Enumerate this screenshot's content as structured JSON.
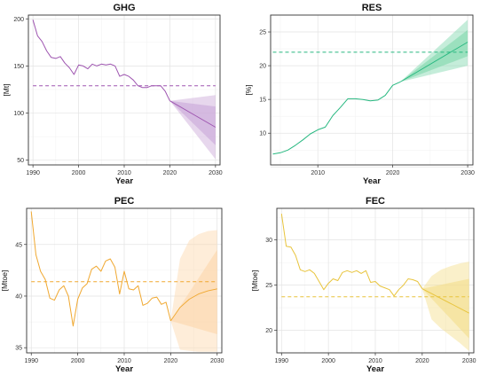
{
  "chart_data": [
    {
      "type": "line",
      "title": "GHG",
      "xlabel": "Year",
      "ylabel": "[Mt]",
      "color": "#9e55b0",
      "band_color": "#c9a6d8",
      "xlim": [
        1989,
        2031
      ],
      "ylim": [
        45,
        204
      ],
      "xticks": [
        1990,
        2000,
        2010,
        2020,
        2030
      ],
      "yticks": [
        50,
        100,
        150,
        200
      ],
      "grid": true,
      "series": [
        {
          "role": "historical",
          "x": [
            1990,
            1991,
            1992,
            1993,
            1994,
            1995,
            1996,
            1997,
            1998,
            1999,
            2000,
            2001,
            2002,
            2003,
            2004,
            2005,
            2006,
            2007,
            2008,
            2009,
            2010,
            2011,
            2012,
            2013,
            2014,
            2015,
            2016,
            2017,
            2018,
            2019,
            2020
          ],
          "values": [
            199,
            182,
            176,
            166,
            159,
            158,
            160,
            153,
            148,
            141,
            151,
            150,
            147,
            152,
            150,
            152,
            151,
            152,
            150,
            139,
            141,
            139,
            135,
            129,
            127,
            127,
            129,
            129,
            129,
            123,
            113
          ]
        },
        {
          "role": "forecast",
          "x": [
            2020,
            2030
          ],
          "values": [
            113,
            85
          ]
        },
        {
          "role": "target",
          "x": [
            1990,
            2030
          ],
          "values": [
            129,
            129
          ]
        }
      ],
      "bands": [
        {
          "x": [
            2020,
            2030
          ],
          "lower": [
            113,
            66
          ],
          "upper": [
            113,
            107
          ]
        },
        {
          "x": [
            2020,
            2030
          ],
          "lower": [
            113,
            51
          ],
          "upper": [
            113,
            119
          ]
        }
      ]
    },
    {
      "type": "line",
      "title": "RES",
      "xlabel": "Year",
      "ylabel": "[%]",
      "color": "#27b880",
      "band_color": "#7fd7ac",
      "xlim": [
        2003.7,
        2030.7
      ],
      "ylim": [
        5.3,
        27.5
      ],
      "xticks": [
        2010,
        2020,
        2030
      ],
      "yticks": [
        5,
        10,
        15,
        20,
        25
      ],
      "grid": true,
      "series": [
        {
          "role": "historical",
          "x": [
            2004,
            2005,
            2006,
            2007,
            2008,
            2009,
            2010,
            2011,
            2012,
            2013,
            2014,
            2015,
            2016,
            2017,
            2018,
            2019,
            2020,
            2021
          ],
          "values": [
            6.9,
            7.1,
            7.5,
            8.2,
            9.0,
            9.9,
            10.5,
            10.9,
            12.6,
            13.8,
            15.1,
            15.1,
            15.0,
            14.8,
            14.9,
            15.6,
            17.1,
            17.6
          ]
        },
        {
          "role": "forecast",
          "x": [
            2021,
            2030
          ],
          "values": [
            17.6,
            23.5
          ]
        },
        {
          "role": "target",
          "x": [
            2004,
            2030
          ],
          "values": [
            22.0,
            22.0
          ]
        }
      ],
      "bands": [
        {
          "x": [
            2021,
            2030
          ],
          "lower": [
            17.6,
            21.4
          ],
          "upper": [
            17.6,
            25.3
          ]
        },
        {
          "x": [
            2021,
            2030
          ],
          "lower": [
            17.6,
            20.0
          ],
          "upper": [
            17.6,
            26.8
          ]
        }
      ]
    },
    {
      "type": "line",
      "title": "PEC",
      "xlabel": "Year",
      "ylabel": "[Mtoe]",
      "color": "#f0a830",
      "band_color": "#fcd6aa",
      "xlim": [
        1989,
        2031
      ],
      "ylim": [
        34.5,
        48.5
      ],
      "xticks": [
        1990,
        2000,
        2010,
        2020,
        2030
      ],
      "yticks": [
        35,
        40,
        45
      ],
      "grid": true,
      "series": [
        {
          "role": "historical",
          "x": [
            1990,
            1991,
            1992,
            1993,
            1994,
            1995,
            1996,
            1997,
            1998,
            1999,
            2000,
            2001,
            2002,
            2003,
            2004,
            2005,
            2006,
            2007,
            2008,
            2009,
            2010,
            2011,
            2012,
            2013,
            2014,
            2015,
            2016,
            2017,
            2018,
            2019,
            2020
          ],
          "values": [
            48.2,
            44.0,
            42.4,
            41.6,
            39.8,
            39.6,
            40.6,
            41.0,
            40.0,
            37.1,
            39.7,
            40.8,
            41.2,
            42.6,
            42.9,
            42.4,
            43.4,
            43.6,
            42.8,
            40.2,
            42.4,
            40.7,
            40.6,
            41.0,
            39.1,
            39.3,
            39.8,
            39.9,
            39.2,
            39.4,
            37.6
          ]
        },
        {
          "role": "forecast",
          "x": [
            2020,
            2022,
            2024,
            2026,
            2028,
            2030
          ],
          "values": [
            37.6,
            38.9,
            39.7,
            40.2,
            40.5,
            40.7
          ]
        },
        {
          "role": "target",
          "x": [
            1990,
            2030
          ],
          "values": [
            41.4,
            41.4
          ]
        }
      ],
      "bands": [
        {
          "x": [
            2020,
            2030
          ],
          "lower": [
            37.6,
            36.3
          ],
          "upper": [
            37.6,
            44.5
          ]
        },
        {
          "x": [
            2020,
            2022,
            2024,
            2026,
            2028,
            2030
          ],
          "lower": [
            37.6,
            34.8,
            34.7,
            34.6,
            34.6,
            34.6
          ],
          "upper": [
            37.6,
            43.6,
            45.4,
            46.0,
            46.3,
            46.4
          ]
        }
      ]
    },
    {
      "type": "line",
      "title": "FEC",
      "xlabel": "Year",
      "ylabel": "[Mtoe]",
      "color": "#e8c43c",
      "band_color": "#f3dd8a",
      "xlim": [
        1989,
        2031
      ],
      "ylim": [
        17.5,
        33.5
      ],
      "xticks": [
        1990,
        2000,
        2010,
        2020,
        2030
      ],
      "yticks": [
        20,
        25,
        30
      ],
      "grid": true,
      "series": [
        {
          "role": "historical",
          "x": [
            1990,
            1991,
            1992,
            1993,
            1994,
            1995,
            1996,
            1997,
            1998,
            1999,
            2000,
            2001,
            2002,
            2003,
            2004,
            2005,
            2006,
            2007,
            2008,
            2009,
            2010,
            2011,
            2012,
            2013,
            2014,
            2015,
            2016,
            2017,
            2018,
            2019,
            2020
          ],
          "values": [
            32.9,
            29.3,
            29.2,
            28.3,
            26.7,
            26.5,
            26.7,
            26.3,
            25.4,
            24.5,
            25.2,
            25.7,
            25.5,
            26.4,
            26.6,
            26.4,
            26.6,
            26.3,
            26.6,
            25.3,
            25.4,
            24.9,
            24.7,
            24.5,
            23.8,
            24.5,
            25.0,
            25.7,
            25.6,
            25.4,
            24.6
          ]
        },
        {
          "role": "forecast",
          "x": [
            2020,
            2030
          ],
          "values": [
            24.6,
            21.9
          ]
        },
        {
          "role": "target",
          "x": [
            1990,
            2030
          ],
          "values": [
            23.7,
            23.7
          ]
        }
      ],
      "bands": [
        {
          "x": [
            2020,
            2030
          ],
          "lower": [
            24.6,
            19.1
          ],
          "upper": [
            24.6,
            25.7
          ]
        },
        {
          "x": [
            2020,
            2022,
            2024,
            2026,
            2028,
            2030
          ],
          "lower": [
            24.6,
            21.2,
            20.2,
            19.4,
            18.6,
            17.7
          ],
          "upper": [
            24.6,
            26.0,
            26.7,
            27.1,
            27.4,
            27.6
          ]
        }
      ]
    }
  ]
}
